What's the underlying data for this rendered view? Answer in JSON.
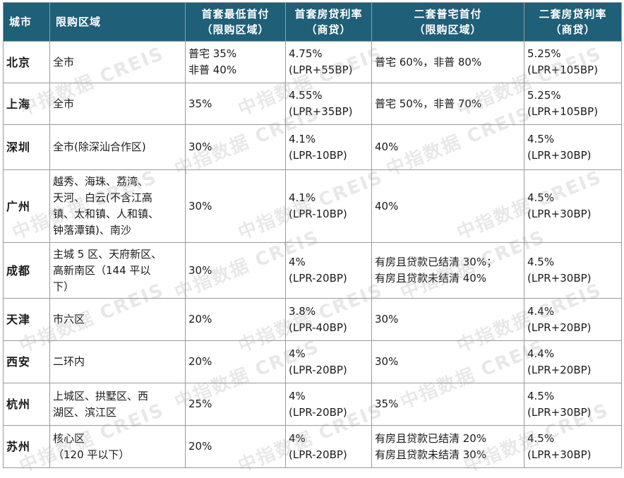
{
  "header": {
    "city": "城市",
    "area": "限购区域",
    "first_down": [
      "首套最低首付",
      "（限购区域）"
    ],
    "first_rate": [
      "首套房贷利率",
      "（商贷）"
    ],
    "second_down": [
      "二套普宅首付",
      "（限购区域）"
    ],
    "second_rate": [
      "二套房贷利率",
      "（商贷）"
    ]
  },
  "rows": [
    {
      "city": "北京",
      "area": [
        "全市"
      ],
      "first_down": [
        "普宅 35%",
        "非普 40%"
      ],
      "first_rate": [
        "4.75%",
        "(LPR+55BP)"
      ],
      "second_down": [
        "普宅 60%，非普 80%"
      ],
      "second_rate": [
        "5.25%",
        "(LPR+105BP)"
      ]
    },
    {
      "city": "上海",
      "area": [
        "全市"
      ],
      "first_down": [
        "35%"
      ],
      "first_rate": [
        "4.55%",
        "(LPR+35BP)"
      ],
      "second_down": [
        "普宅 50%，非普 70%"
      ],
      "second_rate": [
        "5.25%",
        "(LPR+105BP)"
      ]
    },
    {
      "city": "深圳",
      "area": [
        "全市(除深汕合作区)"
      ],
      "first_down": [
        "30%"
      ],
      "first_rate": [
        "4.1%",
        "(LPR-10BP)"
      ],
      "second_down": [
        "40%"
      ],
      "second_rate": [
        "4.5%",
        "(LPR+30BP)"
      ]
    },
    {
      "city": "广州",
      "area": [
        "越秀、海珠、荔湾、",
        "天河、白云(不含江高",
        "镇、太和镇、人和镇、",
        "钟落潭镇)、南沙"
      ],
      "first_down": [
        "30%"
      ],
      "first_rate": [
        "4.1%",
        "(LPR-10BP)"
      ],
      "second_down": [
        "40%"
      ],
      "second_rate": [
        "4.5%",
        "(LPR+30BP)"
      ]
    },
    {
      "city": "成都",
      "area": [
        "主城 5 区、天府新区、",
        "高新南区（144 平以",
        "下）"
      ],
      "first_down": [
        "30%"
      ],
      "first_rate": [
        "4%",
        "(LPR-20BP)"
      ],
      "second_down": [
        "有房且贷款已结清 30%；",
        "有房且贷款未结清 40%"
      ],
      "second_rate": [
        "4.5%",
        "(LPR+30BP)"
      ]
    },
    {
      "city": "天津",
      "area": [
        "市六区"
      ],
      "first_down": [
        "20%"
      ],
      "first_rate": [
        "3.8%",
        "(LPR-40BP)"
      ],
      "second_down": [
        "30%"
      ],
      "second_rate": [
        "4.4%",
        "(LPR+20BP)"
      ]
    },
    {
      "city": "西安",
      "area": [
        "二环内"
      ],
      "first_down": [
        "20%"
      ],
      "first_rate": [
        "4%",
        "(LPR-20BP)"
      ],
      "second_down": [
        "30%"
      ],
      "second_rate": [
        "4.4%",
        "(LPR+20BP)"
      ]
    },
    {
      "city": "杭州",
      "area": [
        "上城区、拱墅区、西",
        "湖区、滨江区"
      ],
      "first_down": [
        "25%"
      ],
      "first_rate": [
        "4%",
        "(LPR-20BP)"
      ],
      "second_down": [
        "35%"
      ],
      "second_rate": [
        "4.5%",
        "(LPR+30BP)"
      ]
    },
    {
      "city": "苏州",
      "area": [
        "核心区",
        "（120 平以下）"
      ],
      "first_down": [
        "20%"
      ],
      "first_rate": [
        "4%",
        "(LPR-20BP)"
      ],
      "second_down": [
        "有房且贷款已结清 20%",
        "有房且贷款未结清 30%"
      ],
      "second_rate": [
        "4.5%",
        "(LPR+30BP)"
      ]
    }
  ],
  "watermark": "中指数据 CREIS"
}
